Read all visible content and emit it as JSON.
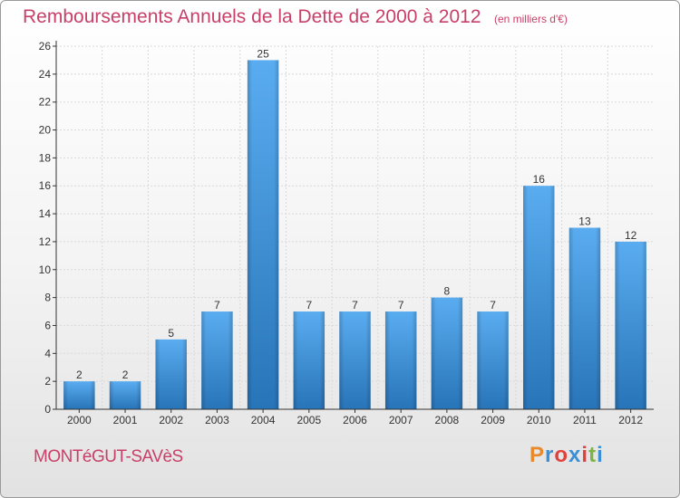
{
  "header": {
    "title": "Remboursements Annuels de la Dette de 2000 à 2012",
    "unit": "(en milliers d'€)"
  },
  "footer": {
    "place": "MONTéGUT-SAVèS",
    "logo": "Proxiti",
    "logo_colors": [
      "#e8892b",
      "#3b8fd4",
      "#e2403c",
      "#3b8fd4",
      "#e2403c",
      "#7cb342",
      "#3b8fd4"
    ]
  },
  "colors": {
    "title": "#c8406a",
    "bar_top": "#5aacf0",
    "bar_bottom": "#2874b8",
    "grid": "#d9d9d9",
    "axis": "#333333"
  },
  "chart_data": {
    "type": "bar",
    "categories": [
      "2000",
      "2001",
      "2002",
      "2003",
      "2004",
      "2005",
      "2006",
      "2007",
      "2008",
      "2009",
      "2010",
      "2011",
      "2012"
    ],
    "values": [
      2,
      2,
      5,
      7,
      25,
      7,
      7,
      7,
      8,
      7,
      16,
      13,
      12
    ],
    "ylim": [
      0,
      26
    ],
    "yticks": [
      0,
      2,
      4,
      6,
      8,
      10,
      12,
      14,
      16,
      18,
      20,
      22,
      24,
      26
    ],
    "grid": true,
    "legend": "none"
  }
}
